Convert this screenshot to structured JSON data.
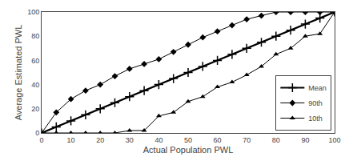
{
  "chart_data": {
    "type": "line",
    "xlabel": "Actual Population PWL",
    "ylabel": "Average Estimated PWL",
    "x": [
      0,
      5,
      10,
      15,
      20,
      25,
      30,
      35,
      40,
      45,
      50,
      55,
      60,
      65,
      70,
      75,
      80,
      85,
      90,
      95,
      100
    ],
    "series": [
      {
        "name": "Mean",
        "color": "#000000",
        "marker": "plus",
        "line_style": "solid",
        "values": [
          0,
          5,
          10,
          15,
          20,
          25,
          30,
          35,
          40,
          45,
          50,
          55,
          60,
          65,
          70,
          75,
          80,
          85,
          90,
          95,
          100
        ]
      },
      {
        "name": "90th",
        "color": "#000000",
        "marker": "diamond",
        "line_style": "solid",
        "values": [
          0,
          17,
          28,
          35,
          40,
          47,
          53,
          57,
          61,
          67,
          73,
          79,
          84,
          89,
          94,
          97,
          100,
          100,
          100,
          100,
          100
        ]
      },
      {
        "name": "10th",
        "color": "#000000",
        "marker": "triangle-up",
        "line_style": "solid",
        "values": [
          0,
          0,
          0,
          0,
          0,
          0,
          2,
          2,
          14,
          17,
          26,
          30,
          38,
          42,
          48,
          55,
          65,
          70,
          80,
          82,
          100
        ]
      }
    ],
    "xlim": [
      0,
      100
    ],
    "ylim": [
      0,
      100
    ],
    "xticks": [
      0,
      10,
      20,
      30,
      40,
      50,
      60,
      70,
      80,
      90,
      100
    ],
    "yticks": [
      0,
      20,
      40,
      60,
      80,
      100
    ],
    "grid": false,
    "legend": "lower right"
  }
}
